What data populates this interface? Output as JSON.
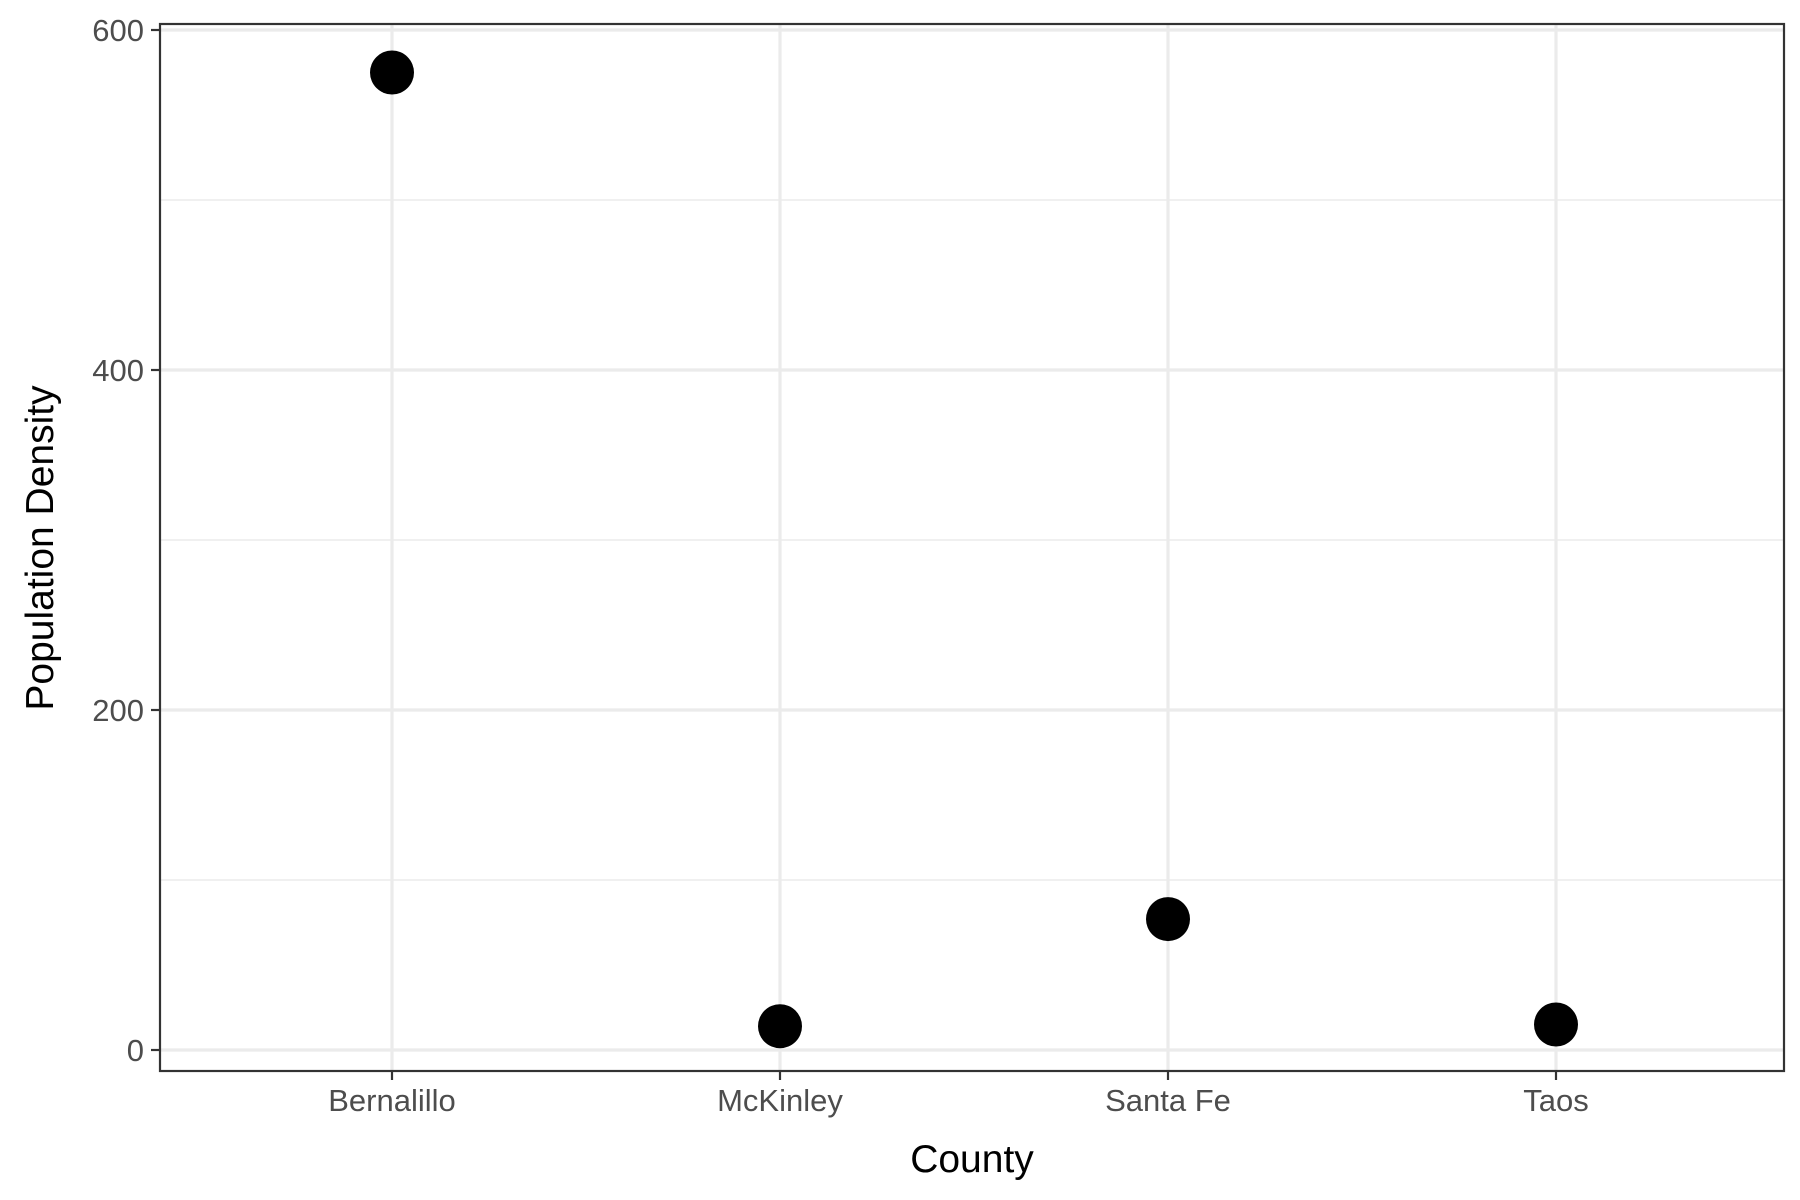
{
  "chart_data": {
    "type": "scatter",
    "title": "",
    "xlabel": "County",
    "ylabel": "Population Density",
    "categories": [
      "Bernalillo",
      "McKinley",
      "Santa Fe",
      "Taos"
    ],
    "values": [
      575,
      14,
      77,
      15
    ],
    "ylim": [
      -15,
      600
    ],
    "yticks": [
      0,
      200,
      400,
      600
    ],
    "yticks_minor": [
      100,
      300,
      500
    ],
    "grid": true,
    "legend": "none",
    "colors": {
      "point": "#000000",
      "grid": "#ebebeb",
      "axis": "#333333",
      "background": "#ffffff"
    }
  }
}
